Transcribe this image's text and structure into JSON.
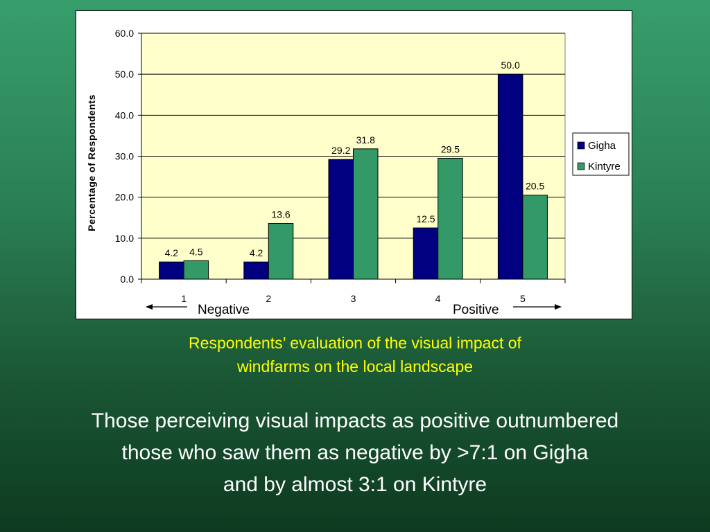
{
  "chart_data": {
    "type": "bar",
    "categories": [
      "1",
      "2",
      "3",
      "4",
      "5"
    ],
    "series": [
      {
        "name": "Gigha",
        "values": [
          4.2,
          4.2,
          29.2,
          12.5,
          50.0
        ],
        "labels": [
          "4.2",
          "4.2",
          "29.2",
          "12.5",
          "50.0"
        ],
        "color": "#000080"
      },
      {
        "name": "Kintyre",
        "values": [
          4.5,
          13.6,
          31.8,
          29.5,
          20.5
        ],
        "labels": [
          "4.5",
          "13.6",
          "31.8",
          "29.5",
          "20.5"
        ],
        "color": "#339966"
      }
    ],
    "ylabel": "Percentage of Respondents",
    "xlabel": "",
    "ylim": [
      0,
      60
    ],
    "yticks": [
      "0.0",
      "10.0",
      "20.0",
      "30.0",
      "40.0",
      "50.0",
      "60.0"
    ],
    "grid": true,
    "plot_background": "#ffffcc",
    "legend_position": "right",
    "annotations": {
      "negative": "Negative",
      "positive": "Positive"
    }
  },
  "caption": {
    "line1": "Respondents’ evaluation of the visual impact of",
    "line2": "windfarms on the local landscape"
  },
  "body": {
    "line1": "Those perceiving visual impacts as positive outnumbered",
    "line2": "those who saw them as negative by >7:1 on Gigha",
    "line3": "and by almost 3:1 on Kintyre"
  }
}
